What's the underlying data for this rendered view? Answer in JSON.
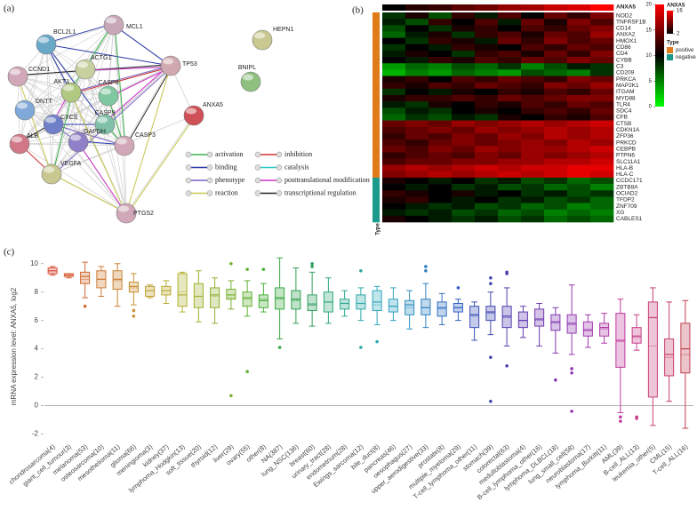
{
  "network": {
    "panel_label": "(a)",
    "nodes": [
      {
        "label": "BCL2L1",
        "color": "#6aa8c8"
      },
      {
        "label": "MCL1",
        "color": "#c8a8b8"
      },
      {
        "label": "HEPN1",
        "color": "#c8c890"
      },
      {
        "label": "ACTG1",
        "color": "#c8d0a0"
      },
      {
        "label": "TP53",
        "color": "#d0a8b0"
      },
      {
        "label": "BNIPL",
        "color": "#90c080"
      },
      {
        "label": "CCND1",
        "color": "#d0a8b8"
      },
      {
        "label": "AKT1",
        "color": "#b0c880"
      },
      {
        "label": "CASP8",
        "color": "#80c8a0"
      },
      {
        "label": "DNTT",
        "color": "#80a8d8"
      },
      {
        "label": "CYCS",
        "color": "#7080c8"
      },
      {
        "label": "CASP9",
        "color": "#80c0a8"
      },
      {
        "label": "ANXA5",
        "color": "#d05058"
      },
      {
        "label": "ALB",
        "color": "#d07888"
      },
      {
        "label": "GAPDH",
        "color": "#9080c8"
      },
      {
        "label": "CASP3",
        "color": "#d0a8b8"
      },
      {
        "label": "VEGFA",
        "color": "#c8c890"
      },
      {
        "label": "PTGS2",
        "color": "#d0a8b8"
      }
    ],
    "legend": [
      {
        "label": "activation",
        "color": "#3cb44b"
      },
      {
        "label": "inhibition",
        "color": "#d03030"
      },
      {
        "label": "binding",
        "color": "#2a3aa8"
      },
      {
        "label": "catalysis",
        "color": "#30c8c8"
      },
      {
        "label": "phenotype",
        "color": "#7a60c0"
      },
      {
        "label": "posttranslational modification",
        "color": "#d030c8"
      },
      {
        "label": "reaction",
        "color": "#c8c850"
      },
      {
        "label": "transcriptional regulation",
        "color": "#222222"
      }
    ]
  },
  "heatmap": {
    "panel_label": "(b)",
    "title": "ANXA5",
    "type_label": "Type",
    "legend_title": "ANXA5",
    "type_title": "Type",
    "type_levels": [
      {
        "label": "positive",
        "color": "#e07b1a"
      },
      {
        "label": "negative",
        "color": "#1a9a8a"
      }
    ],
    "range": [
      0,
      20
    ],
    "colorbar_ticks": [
      20,
      15,
      10,
      5,
      0
    ],
    "anxa5_range": [
      2,
      16
    ],
    "anxa5_ticks": [
      16,
      2
    ],
    "anxa5": [
      2,
      4,
      5,
      7,
      8,
      10,
      11,
      13,
      14,
      16
    ],
    "rows": [
      "NOD2",
      "TNFRSF1B",
      "CD14",
      "ANXA2",
      "HMOX1",
      "CD86",
      "CD4",
      "CYBB",
      "C3",
      "CD209",
      "PRKCA",
      "MAP2K1",
      "ITGAM",
      "MYD88",
      "TLR4",
      "SDC4",
      "CFB",
      "CTSB",
      "CDKN1A",
      "ZFP36",
      "PRKCD",
      "CEBPB",
      "PTPN6",
      "SLC11A1",
      "HLA-B",
      "HLA-C",
      "CCDC171",
      "ZBTB8A",
      "OCIAD2",
      "TFDP2",
      "ZNF709",
      "XG",
      "CABLES1"
    ],
    "row_types": [
      "positive",
      "positive",
      "positive",
      "positive",
      "positive",
      "positive",
      "positive",
      "positive",
      "positive",
      "positive",
      "positive",
      "positive",
      "positive",
      "positive",
      "positive",
      "positive",
      "positive",
      "positive",
      "positive",
      "positive",
      "positive",
      "positive",
      "positive",
      "positive",
      "positive",
      "positive",
      "negative",
      "negative",
      "negative",
      "negative",
      "negative",
      "negative",
      "negative"
    ],
    "values": [
      [
        8,
        11,
        7,
        12,
        9,
        13,
        10,
        14,
        12,
        15
      ],
      [
        9,
        7,
        12,
        10,
        13,
        9,
        14,
        11,
        15,
        13
      ],
      [
        7,
        10,
        8,
        11,
        12,
        10,
        13,
        12,
        14,
        15
      ],
      [
        6,
        9,
        11,
        8,
        12,
        13,
        11,
        14,
        13,
        16
      ],
      [
        10,
        8,
        12,
        11,
        9,
        14,
        12,
        15,
        13,
        14
      ],
      [
        8,
        10,
        9,
        12,
        11,
        10,
        13,
        12,
        14,
        13
      ],
      [
        9,
        11,
        10,
        8,
        12,
        13,
        11,
        14,
        12,
        15
      ],
      [
        10,
        9,
        12,
        11,
        13,
        12,
        14,
        13,
        15,
        14
      ],
      [
        4,
        6,
        5,
        7,
        6,
        8,
        5,
        7,
        9,
        8
      ],
      [
        3,
        5,
        4,
        6,
        5,
        4,
        7,
        6,
        5,
        8
      ],
      [
        11,
        12,
        10,
        13,
        12,
        14,
        13,
        12,
        15,
        14
      ],
      [
        12,
        11,
        13,
        12,
        14,
        13,
        12,
        15,
        14,
        16
      ],
      [
        8,
        10,
        9,
        11,
        10,
        12,
        11,
        13,
        12,
        14
      ],
      [
        11,
        12,
        12,
        13,
        12,
        14,
        13,
        14,
        15,
        15
      ],
      [
        9,
        8,
        11,
        10,
        12,
        11,
        13,
        12,
        14,
        13
      ],
      [
        7,
        9,
        8,
        10,
        11,
        10,
        12,
        13,
        12,
        14
      ],
      [
        6,
        8,
        7,
        9,
        8,
        11,
        10,
        12,
        11,
        13
      ],
      [
        14,
        15,
        14,
        16,
        15,
        16,
        17,
        16,
        17,
        18
      ],
      [
        13,
        14,
        15,
        14,
        16,
        15,
        16,
        17,
        16,
        17
      ],
      [
        12,
        14,
        13,
        15,
        14,
        16,
        15,
        17,
        16,
        17
      ],
      [
        13,
        12,
        14,
        15,
        14,
        15,
        16,
        15,
        17,
        16
      ],
      [
        14,
        13,
        15,
        14,
        16,
        15,
        16,
        16,
        17,
        18
      ],
      [
        12,
        13,
        14,
        13,
        15,
        14,
        16,
        15,
        16,
        17
      ],
      [
        13,
        14,
        14,
        15,
        15,
        16,
        16,
        17,
        17,
        18
      ],
      [
        16,
        17,
        16,
        17,
        18,
        17,
        18,
        18,
        19,
        19
      ],
      [
        15,
        16,
        17,
        16,
        17,
        18,
        17,
        18,
        19,
        18
      ],
      [
        11,
        10,
        9,
        10,
        8,
        9,
        7,
        8,
        6,
        7
      ],
      [
        10,
        9,
        10,
        8,
        9,
        7,
        8,
        6,
        7,
        5
      ],
      [
        12,
        11,
        10,
        11,
        9,
        10,
        8,
        9,
        7,
        8
      ],
      [
        11,
        12,
        10,
        9,
        10,
        8,
        9,
        7,
        8,
        6
      ],
      [
        10,
        9,
        8,
        9,
        7,
        8,
        6,
        7,
        5,
        6
      ],
      [
        9,
        8,
        9,
        7,
        8,
        6,
        7,
        5,
        6,
        5
      ],
      [
        11,
        10,
        9,
        8,
        9,
        7,
        8,
        6,
        7,
        6
      ]
    ]
  },
  "chart_data": {
    "type": "box",
    "panel_label": "(c)",
    "y_label": "mRNA expression level: ANXA5,   log2",
    "ylim": [
      -2.6,
      10.8
    ],
    "yticks": [
      -2,
      0,
      2,
      4,
      6,
      8,
      10
    ],
    "zero_line": 0,
    "categories": [
      "chondrosarcoma(4)",
      "giant_cell_tumour(3)",
      "melanoma(53)",
      "osteosarcoma(10)",
      "mesothelioma(11)",
      "glioma(66)",
      "meningioma(3)",
      "kidney(37)",
      "lymphoma_Hodgkin(13)",
      "soft_tissue(20)",
      "thyroid(12)",
      "liver(29)",
      "ovary(55)",
      "other(8)",
      "NA(387)",
      "lung_NSC(136)",
      "breast(60)",
      "urinary_tract(28)",
      "endometrium(28)",
      "Ewings_sarcoma(12)",
      "bile_duct(8)",
      "pancreas(46)",
      "oesophagus(27)",
      "upper_aerodigestive(33)",
      "prostate(8)",
      "multiple_myeloma(29)",
      "T-cell_lymphoma_other(11)",
      "stomach(39)",
      "colorectal(63)",
      "medulloblastoma(4)",
      "B-cell_lymphoma_other(16)",
      "lymphoma_DLBCL(18)",
      "lung_small_cell(58)",
      "neuroblastoma(17)",
      "lymphoma_Burkitt(11)",
      "AML(39)",
      "B-cell_ALL(13)",
      "leukemia_other(5)",
      "CML(15)",
      "T-cell_ALL(16)"
    ],
    "colors": [
      "#d8503a",
      "#d8603a",
      "#d06a30",
      "#d07a30",
      "#c88030",
      "#c89030",
      "#c0a030",
      "#b8a830",
      "#b0b030",
      "#a0b030",
      "#90b030",
      "#78b030",
      "#60b030",
      "#48b038",
      "#38a840",
      "#30a050",
      "#30a060",
      "#30a878",
      "#30a890",
      "#30a8a8",
      "#30a8b8",
      "#30a0c0",
      "#3090c0",
      "#3080c0",
      "#3070c0",
      "#3060c0",
      "#3850b8",
      "#4048b0",
      "#5040b0",
      "#6038b0",
      "#7038b0",
      "#8038b0",
      "#9038b0",
      "#a038b0",
      "#b038a8",
      "#c0389a",
      "#c8408a",
      "#c8407a",
      "#c8406a",
      "#c04050"
    ],
    "boxes": [
      {
        "min": 9.2,
        "q1": 9.3,
        "median": 9.5,
        "q3": 9.7,
        "max": 9.8,
        "mean": 9.5
      },
      {
        "min": 9.0,
        "q1": 9.1,
        "median": 9.2,
        "q3": 9.3,
        "max": 9.3,
        "mean": 9.2
      },
      {
        "min": 7.6,
        "q1": 8.6,
        "median": 9.1,
        "q3": 9.4,
        "max": 10.1,
        "mean": 8.9,
        "outliers": [
          7.0
        ]
      },
      {
        "min": 7.7,
        "q1": 8.3,
        "median": 8.9,
        "q3": 9.5,
        "max": 9.8,
        "mean": 8.9
      },
      {
        "min": 7.0,
        "q1": 8.2,
        "median": 8.9,
        "q3": 9.5,
        "max": 10.0,
        "mean": 8.8
      },
      {
        "min": 7.1,
        "q1": 8.0,
        "median": 8.4,
        "q3": 8.7,
        "max": 9.3,
        "mean": 8.3,
        "outliers": [
          6.7,
          6.3
        ]
      },
      {
        "min": 7.6,
        "q1": 7.7,
        "median": 8.1,
        "q3": 8.4,
        "max": 8.5,
        "mean": 8.1
      },
      {
        "min": 7.2,
        "q1": 7.8,
        "median": 8.1,
        "q3": 8.4,
        "max": 8.8,
        "mean": 8.1
      },
      {
        "min": 6.6,
        "q1": 7.0,
        "median": 7.8,
        "q3": 9.3,
        "max": 9.4,
        "mean": 8.0
      },
      {
        "min": 5.9,
        "q1": 6.9,
        "median": 7.7,
        "q3": 8.6,
        "max": 9.5,
        "mean": 7.7
      },
      {
        "min": 5.8,
        "q1": 6.9,
        "median": 7.8,
        "q3": 8.3,
        "max": 9.0,
        "mean": 7.7
      },
      {
        "min": 6.8,
        "q1": 7.5,
        "median": 7.8,
        "q3": 8.2,
        "max": 8.8,
        "mean": 7.6,
        "outliers": [
          10.0,
          0.7
        ]
      },
      {
        "min": 6.3,
        "q1": 7.0,
        "median": 7.6,
        "q3": 8.0,
        "max": 8.8,
        "mean": 7.5,
        "outliers": [
          9.6,
          2.4
        ]
      },
      {
        "min": 6.6,
        "q1": 6.9,
        "median": 7.4,
        "q3": 7.8,
        "max": 8.6,
        "mean": 7.5,
        "outliers": [
          9.6
        ]
      },
      {
        "min": 4.7,
        "q1": 6.8,
        "median": 7.6,
        "q3": 8.3,
        "max": 10.4,
        "mean": 7.5,
        "outliers": [
          4.1
        ]
      },
      {
        "min": 5.8,
        "q1": 6.8,
        "median": 7.5,
        "q3": 8.1,
        "max": 9.7,
        "mean": 7.4
      },
      {
        "min": 5.6,
        "q1": 6.7,
        "median": 7.1,
        "q3": 7.8,
        "max": 9.4,
        "mean": 7.2,
        "outliers": [
          10.0,
          9.8
        ]
      },
      {
        "min": 5.8,
        "q1": 6.6,
        "median": 7.3,
        "q3": 8.0,
        "max": 9.0,
        "mean": 7.3
      },
      {
        "min": 6.3,
        "q1": 6.8,
        "median": 7.2,
        "q3": 7.5,
        "max": 8.1,
        "mean": 7.2
      },
      {
        "min": 6.0,
        "q1": 6.8,
        "median": 7.2,
        "q3": 7.8,
        "max": 8.3,
        "mean": 7.2,
        "outliers": [
          9.5,
          4.1
        ]
      },
      {
        "min": 5.7,
        "q1": 6.7,
        "median": 7.3,
        "q3": 8.1,
        "max": 8.4,
        "mean": 7.1,
        "outliers": [
          4.5
        ]
      },
      {
        "min": 6.0,
        "q1": 6.6,
        "median": 7.0,
        "q3": 7.5,
        "max": 8.3,
        "mean": 7.0
      },
      {
        "min": 5.4,
        "q1": 6.4,
        "median": 7.1,
        "q3": 7.4,
        "max": 8.1,
        "mean": 6.9
      },
      {
        "min": 5.5,
        "q1": 6.4,
        "median": 6.9,
        "q3": 7.5,
        "max": 8.6,
        "mean": 6.9,
        "outliers": [
          9.8,
          9.5
        ]
      },
      {
        "min": 5.7,
        "q1": 6.3,
        "median": 6.9,
        "q3": 7.3,
        "max": 7.9,
        "mean": 6.8
      },
      {
        "min": 6.0,
        "q1": 6.6,
        "median": 6.9,
        "q3": 7.2,
        "max": 7.5,
        "mean": 6.9,
        "outliers": [
          8.3
        ]
      },
      {
        "min": 4.6,
        "q1": 5.5,
        "median": 6.4,
        "q3": 7.0,
        "max": 7.3,
        "mean": 6.3
      },
      {
        "min": 5.0,
        "q1": 6.0,
        "median": 6.6,
        "q3": 7.0,
        "max": 8.0,
        "mean": 6.5,
        "outliers": [
          9.0,
          8.6,
          3.4,
          0.3
        ]
      },
      {
        "min": 4.2,
        "q1": 5.5,
        "median": 6.3,
        "q3": 7.0,
        "max": 8.3,
        "mean": 6.2,
        "outliers": [
          9.4,
          9.3,
          2.8
        ]
      },
      {
        "min": 4.8,
        "q1": 5.5,
        "median": 6.0,
        "q3": 6.6,
        "max": 7.0,
        "mean": 6.0
      },
      {
        "min": 4.2,
        "q1": 5.6,
        "median": 6.1,
        "q3": 6.8,
        "max": 7.2,
        "mean": 6.0
      },
      {
        "min": 3.7,
        "q1": 5.3,
        "median": 5.9,
        "q3": 6.4,
        "max": 6.9,
        "mean": 5.8,
        "outliers": [
          1.8
        ]
      },
      {
        "min": 3.6,
        "q1": 5.1,
        "median": 5.8,
        "q3": 6.4,
        "max": 8.5,
        "mean": 5.7,
        "outliers": [
          2.6,
          2.3,
          -0.4
        ]
      },
      {
        "min": 4.1,
        "q1": 4.9,
        "median": 5.3,
        "q3": 5.9,
        "max": 6.4,
        "mean": 5.4
      },
      {
        "min": 4.4,
        "q1": 4.9,
        "median": 5.5,
        "q3": 5.8,
        "max": 6.5,
        "mean": 5.4
      },
      {
        "min": -0.5,
        "q1": 2.7,
        "median": 4.6,
        "q3": 6.5,
        "max": 7.5,
        "mean": 4.5,
        "outliers": [
          -0.8,
          -1.1
        ]
      },
      {
        "min": 3.9,
        "q1": 4.4,
        "median": 4.9,
        "q3": 5.5,
        "max": 6.4,
        "mean": 4.8,
        "outliers": [
          -0.8,
          -0.9
        ]
      },
      {
        "min": -1.4,
        "q1": 0.6,
        "median": 6.2,
        "q3": 7.3,
        "max": 8.3,
        "mean": 4.2
      },
      {
        "min": 0.3,
        "q1": 2.1,
        "median": 3.6,
        "q3": 4.7,
        "max": 7.3,
        "mean": 3.4
      },
      {
        "min": -1.6,
        "q1": 2.3,
        "median": 4.0,
        "q3": 5.8,
        "max": 7.4,
        "mean": 3.6
      }
    ]
  }
}
